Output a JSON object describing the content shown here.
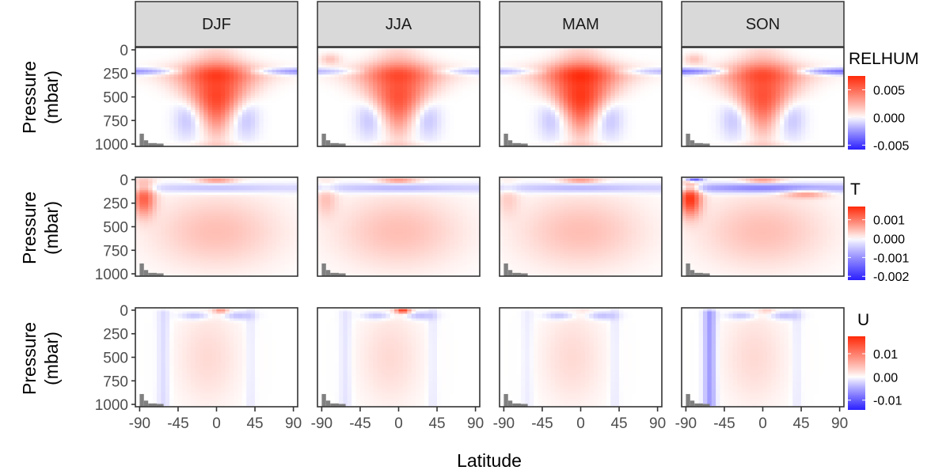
{
  "chart_data": {
    "type": "heatmap",
    "facet_columns": [
      "DJF",
      "JJA",
      "MAM",
      "SON"
    ],
    "facet_rows": [
      "RELHUM",
      "T",
      "U"
    ],
    "xlabel": "Latitude",
    "ylabel_line1": "Pressure",
    "ylabel_line2": "(mbar)",
    "x_ticks": [
      -90,
      -45,
      0,
      45,
      90
    ],
    "x_tick_labels": [
      "-90",
      "-45",
      "0",
      "45",
      "90"
    ],
    "xlim": [
      -95,
      95
    ],
    "y_ticks": [
      0,
      250,
      500,
      750,
      1000
    ],
    "y_tick_labels": [
      "0",
      "250",
      "500",
      "750",
      "1000"
    ],
    "ylim": [
      1025,
      -25
    ],
    "y_reversed": true,
    "colors": {
      "low": "#2b1fff",
      "mid": "#ffffff",
      "high": "#ff2a0a",
      "terrain": "#808080",
      "strip_fill": "#d9d9d9",
      "panel_border": "#333333"
    },
    "legends": [
      {
        "title": "RELHUM",
        "range": [
          -0.0058,
          0.0075
        ],
        "ticks": [
          0.005,
          0.0,
          -0.005
        ],
        "tick_labels": [
          "0.005",
          "0.000",
          "-0.005"
        ]
      },
      {
        "title": "T",
        "range": [
          -0.0022,
          0.0017
        ],
        "ticks": [
          0.001,
          0.0,
          -0.001,
          -0.002
        ],
        "tick_labels": [
          "0.001",
          "0.000",
          "-0.001",
          "-0.002"
        ]
      },
      {
        "title": "U",
        "range": [
          -0.0142,
          0.0175
        ],
        "ticks": [
          0.01,
          0.0,
          -0.01
        ],
        "tick_labels": [
          "0.01",
          "0.00",
          "-0.01"
        ]
      }
    ],
    "field_features": {
      "RELHUM": {
        "pattern": "positive plume centred at equator from 100 to 800 mbar; weak negative band near 250 mbar and mid-latitude lower troposphere",
        "max": {
          "DJF": 0.0065,
          "JJA": 0.006,
          "MAM": 0.007,
          "SON": 0.006
        },
        "band_250_min": {
          "DJF": -0.003,
          "JJA": -0.002,
          "MAM": -0.002,
          "SON": -0.004
        }
      },
      "T": {
        "pattern": "negative band near 100 mbar, broad weak warming below; strong high-latitude southern signal in SON",
        "southern_polar_max": {
          "DJF": 0.0012,
          "JJA": 0.0004,
          "MAM": 0.0003,
          "SON": 0.0016
        },
        "top_min": {
          "DJF": -0.001,
          "JJA": -0.0012,
          "MAM": -0.0012,
          "SON": -0.0021
        }
      },
      "U": {
        "pattern": "weak column structures with stronger signals near the top",
        "top_equator_max": {
          "DJF": 0.008,
          "JJA": 0.016,
          "MAM": 0.001,
          "SON": 0.003
        },
        "southern_column_min": {
          "DJF": -0.004,
          "JJA": -0.003,
          "MAM": -0.002,
          "SON": -0.012
        }
      }
    },
    "terrain_note": "grey surface-pressure blocks at high southern latitudes (Antarctica) near 1000 mbar"
  }
}
